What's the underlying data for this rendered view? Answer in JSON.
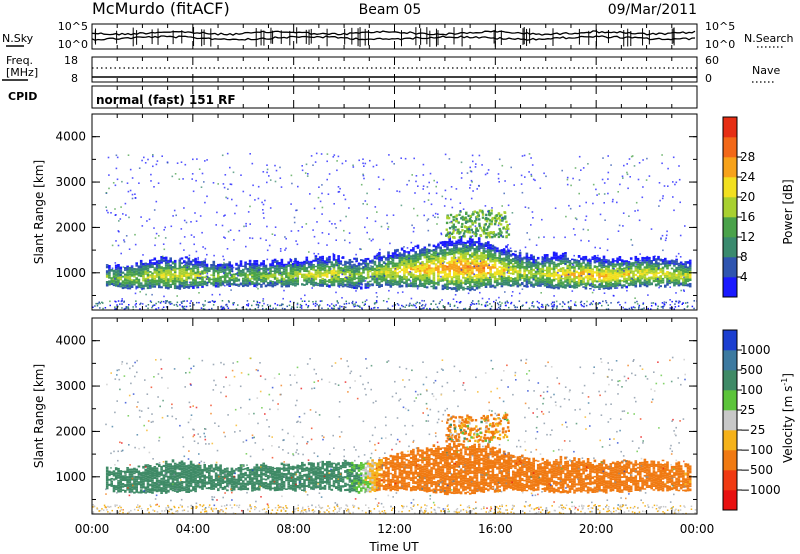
{
  "header": {
    "station": "McMurdo (fitACF)",
    "beam": "Beam 05",
    "date": "09/Mar/2011"
  },
  "status_panels": {
    "nsky_label": "N.Sky",
    "nsearch_label": "N.Search",
    "nsky_ticks": [
      "10^5",
      "10^0"
    ],
    "nsearch_ticks": [
      "10^5",
      "10^0"
    ],
    "freq_label_line1": "Freq.",
    "freq_label_line2": "[MHz]",
    "freq_ticks": [
      "18",
      "8"
    ],
    "nave_label": "Nave",
    "nave_ticks": [
      "60",
      "0"
    ],
    "cpid_label": "CPID",
    "cpid_text": "normal (fast) 151 RF"
  },
  "axes": {
    "ylabel": "Slant Range [km]",
    "xlabel": "Time UT",
    "y_ticks": [
      "1000",
      "2000",
      "3000",
      "4000"
    ],
    "x_ticks": [
      "00:00",
      "04:00",
      "08:00",
      "12:00",
      "16:00",
      "20:00",
      "00:00"
    ]
  },
  "colorbars": {
    "power": {
      "label": "Power [dB]",
      "ticks": [
        "4",
        "8",
        "12",
        "16",
        "20",
        "24",
        "28"
      ],
      "colors": [
        "#1a1aff",
        "#2f55b0",
        "#3a8a6e",
        "#4aa24a",
        "#a8d030",
        "#f2e020",
        "#f7a21a",
        "#f26818",
        "#e62e14"
      ]
    },
    "velocity": {
      "label_main": "Velocity [m s",
      "label_sup": "-1",
      "label_end": "]",
      "ticks": [
        "1000",
        "500",
        "100",
        "25",
        "−25",
        "−100",
        "−500",
        "−1000"
      ],
      "colors": [
        "#1c3fd0",
        "#3d7aa0",
        "#3f8a66",
        "#5cc43a",
        "#c8c8c8",
        "#f5b21a",
        "#f07a12",
        "#f03a12",
        "#e81010"
      ]
    }
  },
  "chart_data": [
    {
      "type": "heatmap",
      "title": "Power",
      "x_range_hours": [
        0,
        24
      ],
      "ylim": [
        180,
        4500
      ],
      "colorbar_range_dB": [
        0,
        32
      ],
      "main_band": {
        "time_hours": [
          0.5,
          1.5,
          2.5,
          3.5,
          4.5,
          5.5,
          6.5,
          7.5,
          8.5,
          9.5,
          10.5,
          11.5,
          12.5,
          13.5,
          14.5,
          15.5,
          16.5,
          17.5,
          18.5,
          19.5,
          20.5,
          21.5,
          22.5,
          23.5
        ],
        "range_low_km": [
          700,
          650,
          650,
          650,
          700,
          700,
          700,
          700,
          700,
          700,
          650,
          700,
          700,
          650,
          600,
          650,
          700,
          700,
          650,
          650,
          650,
          700,
          700,
          700
        ],
        "range_high_km": [
          1100,
          1150,
          1250,
          1300,
          1200,
          1150,
          1200,
          1200,
          1250,
          1300,
          1250,
          1350,
          1500,
          1600,
          1700,
          1650,
          1450,
          1300,
          1350,
          1300,
          1250,
          1300,
          1300,
          1200
        ],
        "peak_power_dB": [
          16,
          18,
          20,
          22,
          18,
          16,
          16,
          18,
          20,
          22,
          16,
          20,
          24,
          26,
          28,
          28,
          22,
          18,
          24,
          26,
          24,
          22,
          22,
          20
        ]
      },
      "secondary_echoes": {
        "time_hours": [
          14.0,
          16.5
        ],
        "range_km": [
          1800,
          2400
        ],
        "power_dB": [
          10,
          20
        ]
      }
    },
    {
      "type": "heatmap",
      "title": "Velocity",
      "x_range_hours": [
        0,
        24
      ],
      "ylim": [
        180,
        4500
      ],
      "colorbar_range_m_s": [
        -1000,
        1000
      ],
      "main_band": {
        "time_hours": [
          0.5,
          1.5,
          2.5,
          3.5,
          4.5,
          5.5,
          6.5,
          7.5,
          8.5,
          9.5,
          10.5,
          11.5,
          12.5,
          13.5,
          14.5,
          15.5,
          16.5,
          17.5,
          18.5,
          19.5,
          20.5,
          21.5,
          22.5,
          23.5
        ],
        "dominant_velocity_m_s": [
          200,
          200,
          200,
          200,
          200,
          200,
          200,
          200,
          200,
          200,
          100,
          -150,
          -200,
          -250,
          -250,
          -250,
          -200,
          -200,
          -200,
          -200,
          -200,
          -200,
          -200,
          -150
        ]
      }
    }
  ]
}
